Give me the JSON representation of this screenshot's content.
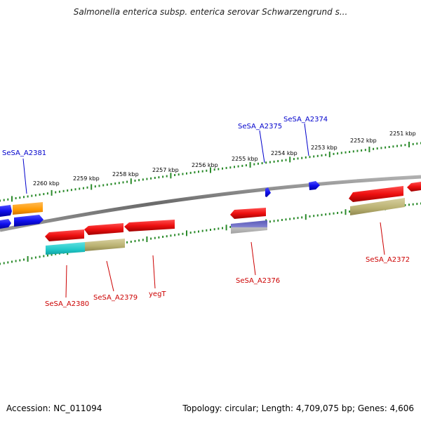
{
  "title": "Salmonella enterica subsp. enterica serovar Schwarzengrund s...",
  "footer": {
    "accession": "Accession: NC_011094",
    "summary": "Topology: circular; Length: 4,709,075 bp; Genes: 4,606"
  },
  "kbp_labels": [
    "2260 kbp",
    "2259 kbp",
    "2258 kbp",
    "2257 kbp",
    "2256 kbp",
    "2255 kbp",
    "2254 kbp",
    "2253 kbp",
    "2252 kbp",
    "2251 kbp"
  ],
  "gene_labels": {
    "forward": [
      "SeSA_A2381",
      "SeSA_A2375",
      "SeSA_A2374"
    ],
    "reverse": [
      "SeSA_A2380",
      "SeSA_A2379",
      "yegT",
      "SeSA_A2376",
      "SeSA_A2372"
    ]
  },
  "colors": {
    "forward_label": "#0000cc",
    "reverse_label": "#cc0000",
    "backbone": "#7a7a7a",
    "tick": "#2a8a2a",
    "forward_gene": "#1010ee",
    "reverse_gene": "#ee1010",
    "orange_feature": "#ff9900",
    "cyan_feature": "#20c8c8",
    "khaki_feature": "#b8b070",
    "purple_feature": "#7070c8"
  }
}
